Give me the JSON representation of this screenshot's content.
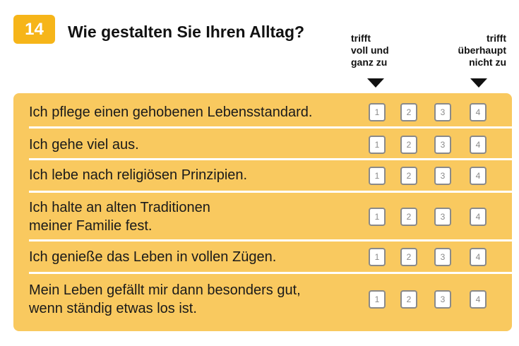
{
  "question": {
    "number": "14",
    "title": "Wie gestalten Sie Ihren Alltag?"
  },
  "scale": {
    "left_label": "trifft\nvoll und\nganz zu",
    "right_label": "trifft\nüberhaupt\nnicht zu",
    "options": [
      "1",
      "2",
      "3",
      "4"
    ]
  },
  "items": [
    {
      "text": "Ich pflege einen gehobenen Lebensstandard."
    },
    {
      "text": "Ich gehe viel aus."
    },
    {
      "text": "Ich lebe nach religiösen Prinzipien."
    },
    {
      "text": "Ich halte an alten Traditionen\nmeiner Familie fest."
    },
    {
      "text": "Ich genieße das Leben in vollen Zügen."
    },
    {
      "text": "Mein Leben gefällt mir dann besonders gut,\nwenn ständig etwas los ist."
    }
  ],
  "colors": {
    "badge": "#f6b519",
    "panel": "#f9c95f",
    "checkbox_border": "#8a8a8a"
  }
}
